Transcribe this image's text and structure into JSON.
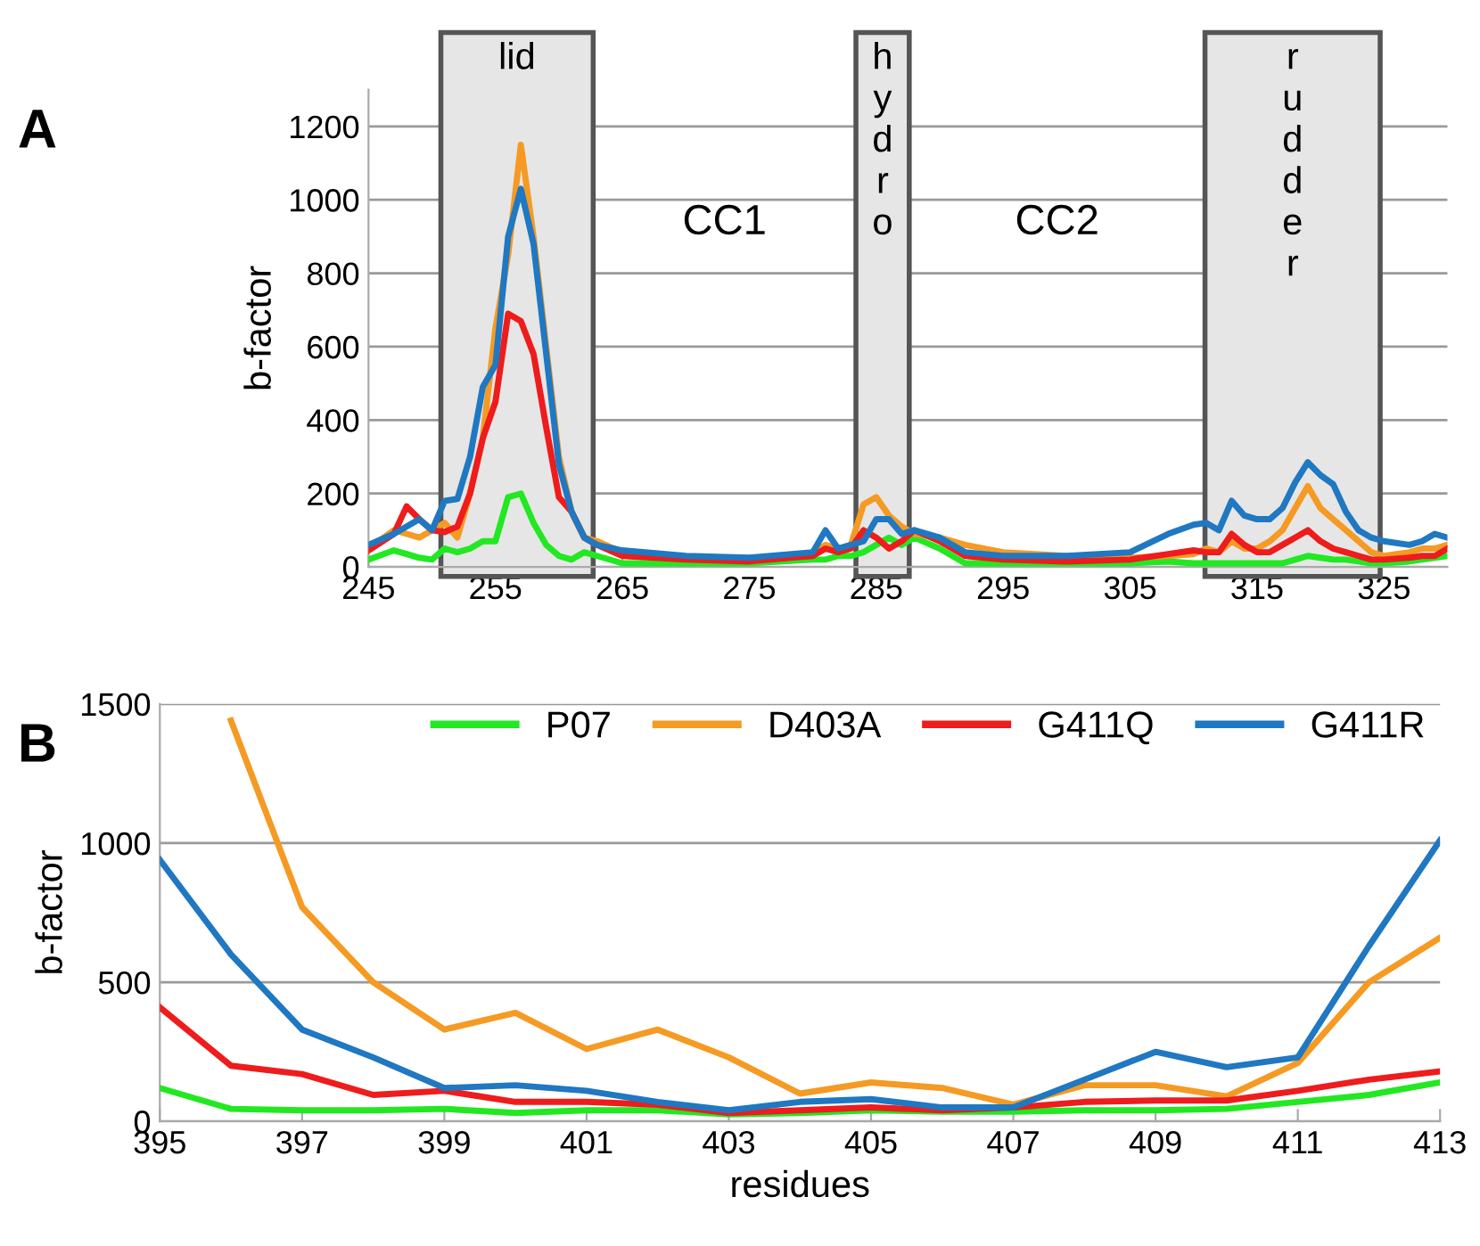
{
  "chart_data": [
    {
      "type": "line",
      "ylabel": "b-factor",
      "xlim": [
        245,
        330
      ],
      "xticks": [
        245,
        255,
        265,
        275,
        285,
        295,
        305,
        315,
        325
      ],
      "ylim": [
        0,
        1300
      ],
      "yticks": [
        0,
        200,
        400,
        600,
        800,
        1000,
        1200
      ],
      "grid": "y",
      "legend": false,
      "marker": "none",
      "line_style": "solid",
      "x": [
        245,
        247,
        248,
        249,
        250,
        251,
        252,
        253,
        254,
        255,
        256,
        257,
        258,
        259,
        260,
        261,
        262,
        263,
        265,
        270,
        275,
        280,
        281,
        282,
        283,
        284,
        285,
        286,
        287,
        288,
        290,
        292,
        295,
        300,
        305,
        308,
        310,
        311,
        312,
        313,
        314,
        315,
        316,
        317,
        318,
        319,
        320,
        321,
        322,
        323,
        324,
        325,
        327,
        328,
        329,
        330
      ],
      "series": [
        {
          "color": "#22e822",
          "values": [
            20,
            45,
            35,
            25,
            20,
            50,
            40,
            50,
            70,
            70,
            190,
            200,
            120,
            60,
            30,
            20,
            40,
            30,
            10,
            10,
            10,
            20,
            20,
            30,
            30,
            40,
            60,
            80,
            60,
            80,
            50,
            10,
            10,
            10,
            10,
            15,
            10,
            10,
            10,
            10,
            10,
            10,
            10,
            10,
            20,
            30,
            25,
            20,
            20,
            15,
            10,
            10,
            15,
            20,
            25,
            30
          ]
        },
        {
          "color": "#f59a23",
          "values": [
            50,
            100,
            90,
            80,
            100,
            120,
            80,
            200,
            350,
            650,
            850,
            1150,
            900,
            600,
            300,
            150,
            80,
            70,
            40,
            25,
            20,
            35,
            60,
            50,
            60,
            170,
            190,
            140,
            110,
            90,
            80,
            60,
            40,
            30,
            25,
            30,
            35,
            50,
            40,
            70,
            50,
            50,
            70,
            100,
            160,
            220,
            160,
            130,
            100,
            70,
            40,
            30,
            40,
            50,
            50,
            60
          ]
        },
        {
          "color": "#ee1c1c",
          "values": [
            45,
            90,
            165,
            130,
            100,
            95,
            110,
            200,
            350,
            450,
            690,
            670,
            580,
            380,
            190,
            150,
            80,
            60,
            30,
            20,
            15,
            30,
            50,
            40,
            50,
            100,
            80,
            50,
            70,
            100,
            70,
            30,
            20,
            15,
            20,
            35,
            45,
            40,
            40,
            90,
            60,
            40,
            40,
            60,
            80,
            100,
            70,
            50,
            40,
            30,
            20,
            20,
            25,
            30,
            30,
            50
          ]
        },
        {
          "color": "#1f78c1",
          "values": [
            60,
            90,
            110,
            130,
            100,
            180,
            185,
            300,
            490,
            550,
            900,
            1030,
            880,
            580,
            280,
            150,
            80,
            60,
            45,
            30,
            25,
            40,
            100,
            50,
            60,
            70,
            130,
            130,
            90,
            100,
            80,
            40,
            30,
            30,
            40,
            90,
            115,
            120,
            100,
            180,
            140,
            130,
            130,
            160,
            230,
            285,
            250,
            225,
            150,
            100,
            80,
            70,
            60,
            70,
            90,
            80
          ]
        }
      ],
      "bands": [
        {
          "axis": "x",
          "from": 250.7,
          "to": 262.7,
          "label": "lid",
          "color": "#e6e6e6"
        },
        {
          "axis": "x",
          "from": 283.4,
          "to": 287.6,
          "label": "hydro",
          "color": "#e6e6e6"
        },
        {
          "axis": "x",
          "from": 310.9,
          "to": 324.7,
          "label": "rudder",
          "color": "#e6e6e6"
        }
      ],
      "annotations": [
        "A",
        "CC1",
        "CC2"
      ]
    },
    {
      "type": "line",
      "xlabel": "residues",
      "ylabel": "b-factor",
      "xlim": [
        395,
        413
      ],
      "xticks": [
        395,
        397,
        399,
        401,
        403,
        405,
        407,
        409,
        411,
        413
      ],
      "ylim": [
        0,
        1500
      ],
      "yticks": [
        0,
        500,
        1000,
        1500
      ],
      "grid": "y",
      "legend": "top right",
      "marker": "none",
      "line_style": "solid",
      "x": [
        395,
        396,
        397,
        398,
        399,
        400,
        401,
        402,
        403,
        404,
        405,
        406,
        407,
        408,
        409,
        410,
        411,
        412,
        413
      ],
      "series": [
        {
          "name": "P07",
          "color": "#22e822",
          "values": [
            120,
            45,
            40,
            40,
            45,
            30,
            40,
            40,
            25,
            30,
            40,
            35,
            35,
            40,
            40,
            45,
            70,
            95,
            140
          ]
        },
        {
          "name": "D403A",
          "color": "#f59a23",
          "values": [
            null,
            1440,
            770,
            500,
            330,
            390,
            260,
            330,
            230,
            100,
            140,
            120,
            60,
            130,
            130,
            90,
            210,
            500,
            660
          ]
        },
        {
          "name": "G411Q",
          "color": "#ee1c1c",
          "values": [
            410,
            200,
            170,
            95,
            110,
            70,
            70,
            60,
            30,
            40,
            50,
            40,
            50,
            70,
            75,
            75,
            110,
            150,
            180
          ]
        },
        {
          "name": "G411R",
          "color": "#1f78c1",
          "values": [
            940,
            600,
            330,
            230,
            120,
            130,
            110,
            70,
            40,
            70,
            80,
            50,
            50,
            150,
            250,
            195,
            230,
            630,
            1010
          ]
        }
      ],
      "annotations": [
        "B"
      ]
    }
  ]
}
